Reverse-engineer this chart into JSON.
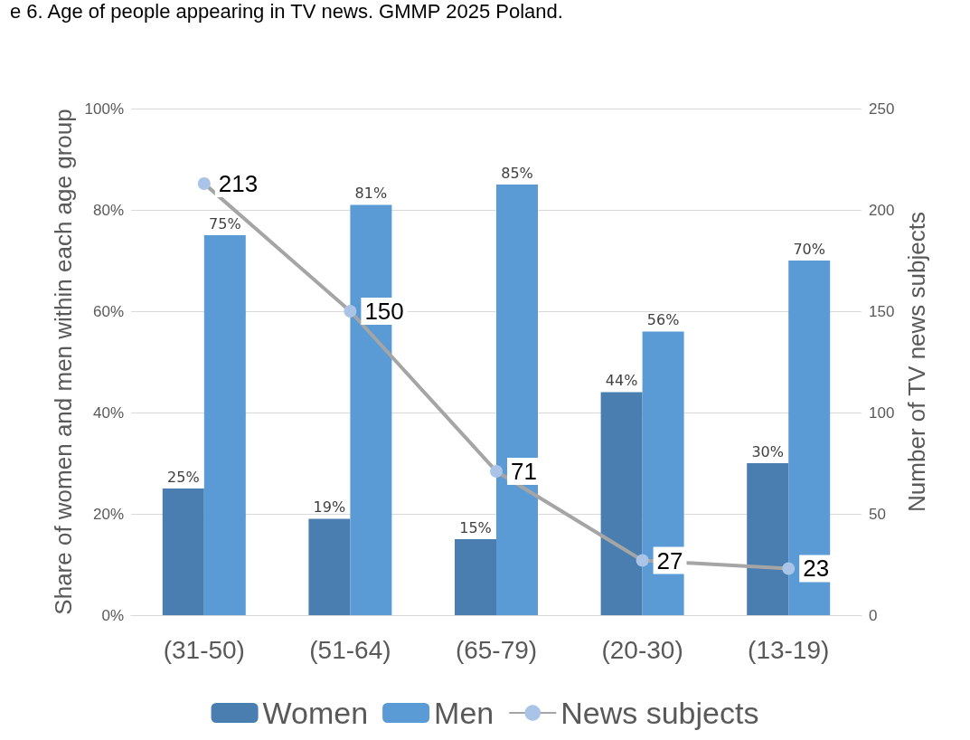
{
  "chart_data": {
    "type": "bar",
    "title": "e 6. Age of people appearing in TV news. GMMP 2025 Poland.",
    "ylabel": "Share of women and men within each age group",
    "y2label": "Number of TV news subjects",
    "categories": [
      "(31-50)",
      "(51-64)",
      "(65-79)",
      "(20-30)",
      "(13-19)"
    ],
    "series": [
      {
        "name": "Women",
        "color": "#4a7eb0",
        "values": [
          25,
          19,
          15,
          44,
          30
        ],
        "value_labels": [
          "25%",
          "19%",
          "15%",
          "44%",
          "30%"
        ]
      },
      {
        "name": "Men",
        "color": "#5b9bd5",
        "values": [
          75,
          81,
          85,
          56,
          70
        ],
        "value_labels": [
          "75%",
          "81%",
          "85%",
          "56%",
          "70%"
        ]
      },
      {
        "name": "News subjects",
        "type": "line",
        "axis": "y2",
        "color": "#a5a5a5",
        "marker": "circle",
        "values": [
          213,
          150,
          71,
          27,
          23
        ],
        "value_labels": [
          "213",
          "150",
          "71",
          "27",
          "23"
        ]
      }
    ],
    "ylim": [
      0,
      100
    ],
    "yticks": [
      {
        "value": 0,
        "label": "0%"
      },
      {
        "value": 20,
        "label": "20%"
      },
      {
        "value": 40,
        "label": "40%"
      },
      {
        "value": 60,
        "label": "60%"
      },
      {
        "value": 80,
        "label": "80%"
      },
      {
        "value": 100,
        "label": "100%"
      }
    ],
    "y2lim": [
      0,
      250
    ],
    "y2ticks": [
      0,
      50,
      100,
      150,
      200,
      250
    ],
    "grid": "y",
    "legend": "bottom"
  }
}
